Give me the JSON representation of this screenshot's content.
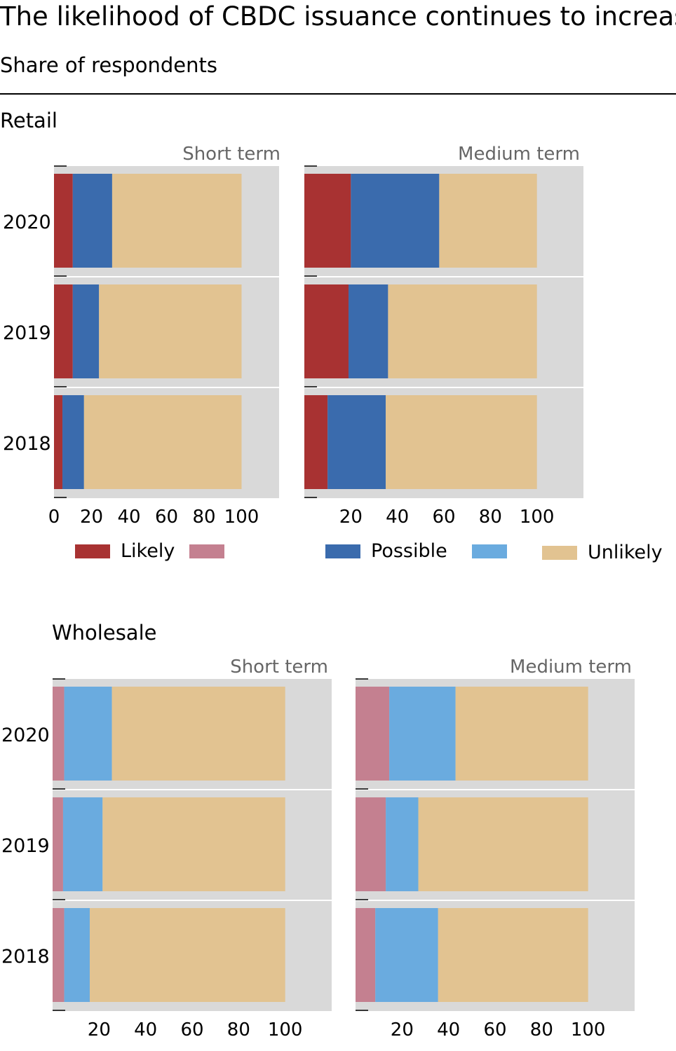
{
  "header": {
    "title": "The likelihood of CBDC issuance continues to increase",
    "subtitle": "Share of respondents"
  },
  "chart_data": {
    "type": "bar",
    "orientation": "horizontal",
    "stacked": true,
    "xlim": [
      0,
      120
    ],
    "grid": true,
    "categories": [
      "2020",
      "2019",
      "2018"
    ],
    "panels": [
      {
        "section": "Retail",
        "panel_title": "Short term",
        "xticks": [
          "0",
          "20",
          "40",
          "60",
          "80",
          "100"
        ],
        "series": [
          {
            "name": "Likely",
            "values": [
              10,
              10,
              4.5
            ]
          },
          {
            "name": "Possible",
            "values": [
              21,
              14,
              11.5
            ]
          },
          {
            "name": "Unlikely",
            "values": [
              69,
              76,
              84
            ]
          }
        ]
      },
      {
        "section": "Retail",
        "panel_title": "Medium term",
        "xticks": [
          "20",
          "40",
          "60",
          "80",
          "100"
        ],
        "series": [
          {
            "name": "Likely",
            "values": [
              20,
              19,
              10
            ]
          },
          {
            "name": "Possible",
            "values": [
              38,
              17,
              25
            ]
          },
          {
            "name": "Unlikely",
            "values": [
              42,
              64,
              65
            ]
          }
        ]
      },
      {
        "section": "Wholesale",
        "panel_title": "Short term",
        "xticks": [
          "20",
          "40",
          "60",
          "80",
          "100"
        ],
        "series": [
          {
            "name": "",
            "values": [
              5,
              4.5,
              5
            ]
          },
          {
            "name": "",
            "values": [
              20.5,
              17,
              11
            ]
          },
          {
            "name": "",
            "values": [
              74.5,
              78.5,
              84
            ]
          }
        ]
      },
      {
        "section": "Wholesale",
        "panel_title": "Medium term",
        "xticks": [
          "20",
          "40",
          "60",
          "80",
          "100"
        ],
        "series": [
          {
            "name": "",
            "values": [
              14.5,
              13,
              8.5
            ]
          },
          {
            "name": "",
            "values": [
              28.5,
              14,
              27
            ]
          },
          {
            "name": "",
            "values": [
              57,
              73,
              64.5
            ]
          }
        ]
      }
    ],
    "legend": [
      {
        "label": "Likely",
        "color": "#a83232"
      },
      {
        "label": "",
        "color": "#c48090"
      },
      {
        "label": "Possible",
        "color": "#3a6bad"
      },
      {
        "label": "",
        "color": "#6aabdf"
      },
      {
        "label": "Unlikely",
        "color": "#e2c391"
      }
    ],
    "colors": {
      "retail": [
        "#a83232",
        "#3a6bad",
        "#e2c391"
      ],
      "wholesale": [
        "#c48090",
        "#6aabdf",
        "#e2c391"
      ],
      "panel_background": "#d9d9d9",
      "grid": "#ffffff"
    }
  }
}
